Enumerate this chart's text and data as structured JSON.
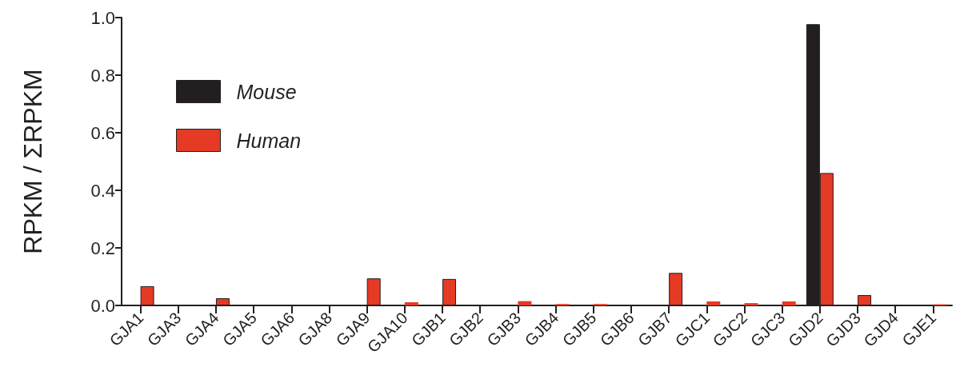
{
  "chart_data": {
    "type": "bar",
    "ylabel": "RPKM / ΣRPKM",
    "categories": [
      "GJA1",
      "GJA3",
      "GJA4",
      "GJA5",
      "GJA6",
      "GJA8",
      "GJA9",
      "GJA10",
      "GJB1",
      "GJB2",
      "GJB3",
      "GJB4",
      "GJB5",
      "GJB6",
      "GJB7",
      "GJC1",
      "GJC2",
      "GJC3",
      "GJD2",
      "GJD3",
      "GJD4",
      "GJE1"
    ],
    "series": [
      {
        "name": "Mouse",
        "color": "#231f20",
        "values": [
          0,
          0,
          0,
          0,
          0,
          0,
          0,
          0,
          0,
          0,
          0,
          0,
          0,
          0,
          0,
          0,
          0,
          0,
          0.977,
          0,
          0,
          0
        ]
      },
      {
        "name": "Human",
        "color": "#e53a24",
        "values": [
          0.067,
          0,
          0.025,
          0,
          0,
          0,
          0.094,
          0.011,
          0.092,
          0,
          0.015,
          0.005,
          0.005,
          0,
          0.113,
          0.014,
          0.008,
          0.014,
          0.46,
          0.036,
          0,
          0.004
        ]
      }
    ],
    "ylim": [
      0,
      1.0
    ],
    "yticks": [
      {
        "value": 0,
        "label": "0.0"
      },
      0.2,
      0.4,
      0.6,
      0.8,
      {
        "value": 1.0,
        "label": "1.0"
      }
    ],
    "grid": false,
    "legend": "top left"
  }
}
